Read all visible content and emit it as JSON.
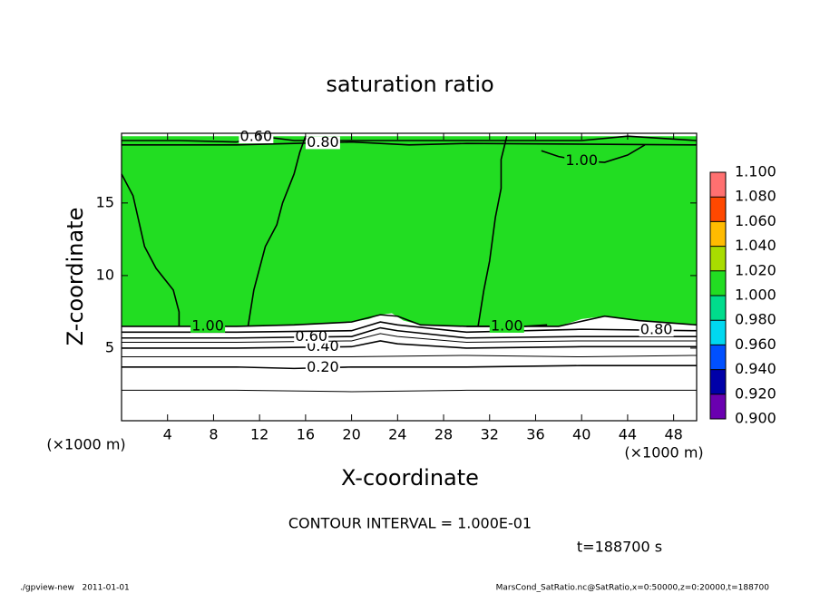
{
  "chart_data": {
    "type": "contour",
    "title": "saturation ratio",
    "xlabel": "X-coordinate",
    "ylabel": "Z-coordinate",
    "xunit": "(×1000 m)",
    "yunit": "(×1000 m)",
    "xlim": [
      0,
      50
    ],
    "ylim": [
      0,
      19.8
    ],
    "xticks": [
      4,
      8,
      12,
      16,
      20,
      24,
      28,
      32,
      36,
      40,
      44,
      48
    ],
    "yticks": [
      5,
      10,
      15
    ],
    "filled_regions": [
      {
        "color": "#22dd22",
        "x": [
          0,
          5,
          10,
          15,
          18,
          20,
          21.5,
          22.5,
          23.5,
          24.5,
          26,
          30,
          38,
          40,
          42,
          45,
          48,
          50,
          50,
          0
        ],
        "y": [
          6.5,
          6.5,
          6.5,
          6.6,
          6.7,
          6.8,
          7.0,
          7.3,
          7.4,
          6.9,
          6.6,
          6.5,
          6.5,
          7.0,
          7.2,
          6.9,
          6.7,
          6.6,
          19.6,
          19.6
        ]
      }
    ],
    "contours": [
      {
        "level": 0.1,
        "x": [
          0,
          10,
          20,
          30,
          40,
          50
        ],
        "y": [
          2.1,
          2.1,
          2.0,
          2.1,
          2.1,
          2.1
        ]
      },
      {
        "level": 0.2,
        "label": "0.20",
        "label_x": 17.5,
        "x": [
          0,
          10,
          15,
          20,
          30,
          40,
          50
        ],
        "y": [
          3.7,
          3.7,
          3.6,
          3.7,
          3.7,
          3.8,
          3.8
        ]
      },
      {
        "level": 0.3,
        "x": [
          0,
          10,
          20,
          30,
          40,
          50
        ],
        "y": [
          4.4,
          4.4,
          4.4,
          4.5,
          4.4,
          4.5
        ]
      },
      {
        "level": 0.4,
        "label": "0.40",
        "label_x": 17.5,
        "x": [
          0,
          10,
          20,
          22.5,
          24,
          30,
          40,
          50
        ],
        "y": [
          5.0,
          5.0,
          5.1,
          5.5,
          5.3,
          5.0,
          5.1,
          5.1
        ]
      },
      {
        "level": 0.5,
        "x": [
          0,
          10,
          20,
          22.5,
          24,
          30,
          40,
          50
        ],
        "y": [
          5.4,
          5.4,
          5.5,
          6.0,
          5.8,
          5.4,
          5.5,
          5.5
        ]
      },
      {
        "level": 0.6,
        "label": "0.60",
        "label_x": 16.5,
        "x": [
          0,
          10,
          20,
          22.5,
          24,
          30,
          40,
          50
        ],
        "y": [
          5.7,
          5.7,
          5.8,
          6.4,
          6.2,
          5.7,
          5.8,
          5.8
        ]
      },
      {
        "level": 0.8,
        "label": "0.80",
        "label_x": 46.5,
        "x": [
          0,
          10,
          20,
          22.5,
          24,
          30,
          40,
          50
        ],
        "y": [
          6.1,
          6.1,
          6.2,
          6.8,
          6.6,
          6.1,
          6.3,
          6.2
        ]
      },
      {
        "level": 1.0,
        "label": "1.00",
        "label_x": 7.5,
        "x": [
          0,
          5,
          10,
          15,
          20,
          22.5,
          24,
          26,
          30,
          38,
          42,
          45,
          50
        ],
        "y": [
          6.5,
          6.5,
          6.5,
          6.6,
          6.8,
          7.3,
          7.2,
          6.6,
          6.5,
          6.5,
          7.2,
          6.9,
          6.6
        ]
      },
      {
        "level": 1.0,
        "label": "1.00",
        "label_x": 33.5,
        "x": [
          30,
          32,
          35,
          37
        ],
        "y": [
          6.5,
          6.5,
          6.5,
          6.6
        ]
      },
      {
        "level": 1.0,
        "x": [
          0,
          1,
          2,
          3,
          4.5,
          5,
          5
        ],
        "y": [
          17.0,
          15.5,
          12.0,
          10.5,
          9.0,
          7.5,
          6.5
        ]
      },
      {
        "level": 1.0,
        "x": [
          11,
          11.5,
          12.5,
          13.5,
          14,
          15,
          15.5,
          16
        ],
        "y": [
          6.5,
          9.0,
          12.0,
          13.5,
          15.0,
          17.0,
          18.5,
          19.6
        ]
      },
      {
        "level": 1.0,
        "x": [
          31,
          31.5,
          32,
          32.5,
          33,
          33,
          33.5
        ],
        "y": [
          6.5,
          9.0,
          11.0,
          14.0,
          16.0,
          18.0,
          19.6
        ]
      },
      {
        "level": 1.0,
        "label": "1.00",
        "label_x": 40,
        "x": [
          36.5,
          38,
          40,
          42,
          44,
          45.5
        ],
        "y": [
          18.6,
          18.2,
          17.9,
          17.8,
          18.3,
          19.0
        ]
      },
      {
        "level": 0.6,
        "label": "0.60",
        "label_x": 11.7,
        "x": [
          0,
          5,
          10,
          12,
          15,
          20,
          30,
          40,
          44,
          50
        ],
        "y": [
          19.3,
          19.3,
          19.2,
          19.6,
          19.3,
          19.3,
          19.3,
          19.3,
          19.6,
          19.3
        ]
      },
      {
        "level": 0.8,
        "label": "0.80",
        "label_x": 17.5,
        "x": [
          0,
          10,
          15,
          20,
          25,
          30,
          50
        ],
        "y": [
          19.0,
          19.0,
          19.1,
          19.2,
          19.0,
          19.1,
          19.0
        ]
      }
    ],
    "colorbar": {
      "levels": [
        {
          "value": 0.9,
          "label": "0.900"
        },
        {
          "value": 0.92,
          "label": "0.920"
        },
        {
          "value": 0.94,
          "label": "0.940"
        },
        {
          "value": 0.96,
          "label": "0.960"
        },
        {
          "value": 0.98,
          "label": "0.980"
        },
        {
          "value": 1.0,
          "label": "1.000"
        },
        {
          "value": 1.02,
          "label": "1.020"
        },
        {
          "value": 1.04,
          "label": "1.040"
        },
        {
          "value": 1.06,
          "label": "1.060"
        },
        {
          "value": 1.08,
          "label": "1.080"
        },
        {
          "value": 1.1,
          "label": "1.100"
        }
      ],
      "colors": [
        "#6a00b0",
        "#0000a8",
        "#0050ff",
        "#00d8f0",
        "#00dc8c",
        "#22dd22",
        "#a8dc00",
        "#ffbb00",
        "#ff4800",
        "#ff7070"
      ]
    },
    "annotation": "CONTOUR INTERVAL = 1.000E-01",
    "time_label": "t=188700 s",
    "footer_left": "./gpview-new   2011-01-01",
    "footer_right": "MarsCond_SatRatio.nc@SatRatio,x=0:50000,z=0:20000,t=188700"
  }
}
